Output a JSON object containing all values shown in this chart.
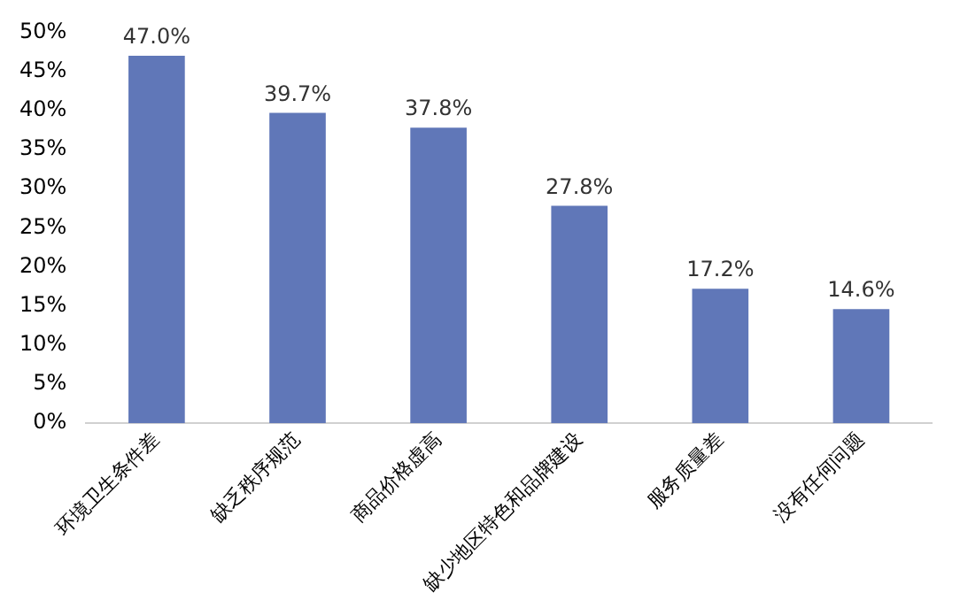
{
  "chart_data": {
    "type": "bar",
    "categories": [
      "环境卫生条件差",
      "缺乏秩序规范",
      "商品价格虚高",
      "缺少地区特色和品牌建设",
      "服务质量差",
      "没有任何问题"
    ],
    "values": [
      47.0,
      39.7,
      37.8,
      27.8,
      17.2,
      14.6
    ],
    "value_labels": [
      "47.0%",
      "39.7%",
      "37.8%",
      "27.8%",
      "17.2%",
      "14.6%"
    ],
    "color": "#6077b8",
    "ylim": [
      0,
      50
    ],
    "yticks": [
      {
        "value": 0,
        "label": "0%"
      },
      {
        "value": 5,
        "label": "5%"
      },
      {
        "value": 10,
        "label": "10%"
      },
      {
        "value": 15,
        "label": "15%"
      },
      {
        "value": 20,
        "label": "20%"
      },
      {
        "value": 25,
        "label": "25%"
      },
      {
        "value": 30,
        "label": "30%"
      },
      {
        "value": 35,
        "label": "35%"
      },
      {
        "value": 40,
        "label": "40%"
      },
      {
        "value": 45,
        "label": "45%"
      },
      {
        "value": 50,
        "label": "50%"
      }
    ],
    "grid": false,
    "legend": false
  }
}
